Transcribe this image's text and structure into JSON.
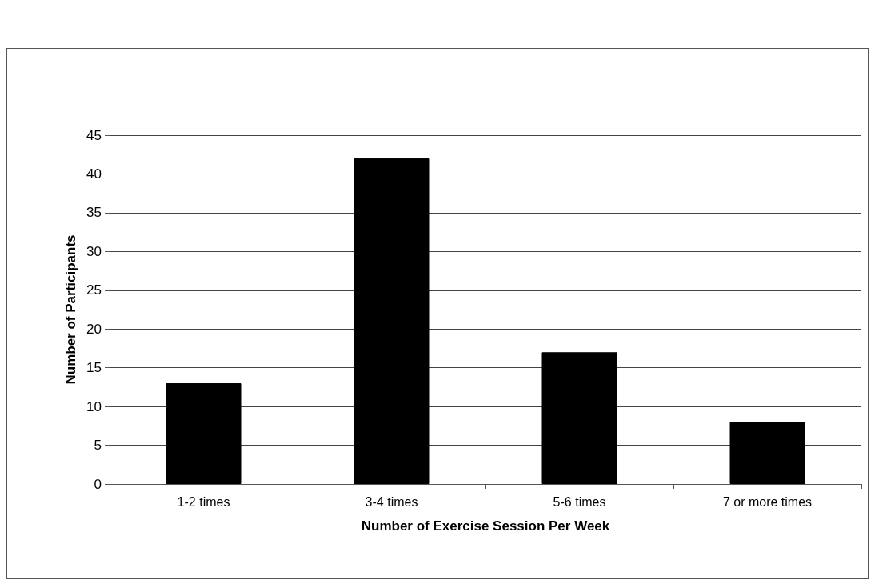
{
  "chart_data": {
    "type": "bar",
    "categories": [
      "1-2 times",
      "3-4 times",
      "5-6 times",
      "7 or more times"
    ],
    "values": [
      13,
      42,
      17,
      8
    ],
    "color": "#000000",
    "xlabel": "Number of Exercise Session Per Week",
    "ylabel": "Number of Participants",
    "ylim": [
      0,
      45
    ],
    "yticks": [
      0,
      5,
      10,
      15,
      20,
      25,
      30,
      35,
      40,
      45
    ],
    "grid": "y"
  }
}
